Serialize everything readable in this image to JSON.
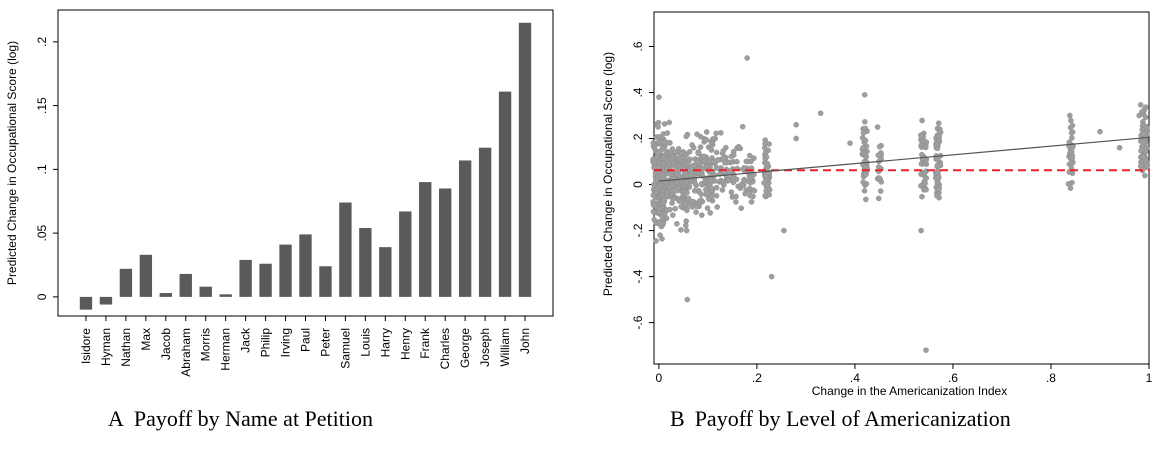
{
  "captions": {
    "a_letter": "A",
    "a_text": "Payoff by Name at Petition",
    "b_letter": "B",
    "b_text": "Payoff by Level of Americanization"
  },
  "chart_data": [
    {
      "type": "bar",
      "title": "",
      "xlabel": "",
      "ylabel": "Predicted Change in Occupational Score (log)",
      "ylim": [
        -0.015,
        0.225
      ],
      "yticks": [
        0,
        0.05,
        0.1,
        0.15,
        0.2
      ],
      "ytick_labels": [
        "0",
        ".05",
        ".1",
        ".15",
        ".2"
      ],
      "bar_color": "#5a5a5a",
      "grid": false,
      "categories": [
        "Isidore",
        "Hyman",
        "Nathan",
        "Max",
        "Jacob",
        "Abraham",
        "Morris",
        "Herman",
        "Jack",
        "Philip",
        "Irving",
        "Paul",
        "Peter",
        "Samuel",
        "Louis",
        "Harry",
        "Henry",
        "Frank",
        "Charles",
        "George",
        "Joseph",
        "William",
        "John"
      ],
      "values": [
        -0.01,
        -0.006,
        0.022,
        0.033,
        0.003,
        0.018,
        0.008,
        0.002,
        0.029,
        0.026,
        0.041,
        0.049,
        0.024,
        0.074,
        0.054,
        0.039,
        0.067,
        0.09,
        0.085,
        0.107,
        0.117,
        0.161,
        0.215
      ]
    },
    {
      "type": "scatter",
      "title": "",
      "xlabel": "Change in the Americanization Index",
      "ylabel": "Predicted Change in Occupational Score (log)",
      "xlim": [
        -0.01,
        1.0
      ],
      "ylim": [
        -0.78,
        0.75
      ],
      "xticks": [
        0,
        0.2,
        0.4,
        0.6,
        0.8,
        1
      ],
      "xtick_labels": [
        "0",
        ".2",
        ".4",
        ".6",
        ".8",
        "1"
      ],
      "yticks": [
        -0.6,
        -0.4,
        -0.2,
        0,
        0.2,
        0.4,
        0.6
      ],
      "ytick_labels": [
        "-.6",
        "-.4",
        "-.2",
        "0",
        ".2",
        ".4",
        ".6"
      ],
      "point_color": "#9e9e9e",
      "grid": false,
      "fit_line": {
        "x": [
          0,
          1
        ],
        "y": [
          0.015,
          0.205
        ],
        "color": "#555555"
      },
      "reference_line": {
        "y": 0.062,
        "color": "#e8222a",
        "style": "dashed"
      },
      "column_groups": [
        {
          "x": 0.0,
          "spread": 0.012,
          "n": 150,
          "mean": 0.01,
          "sd": 0.11,
          "min": -0.25,
          "max": 0.38
        },
        {
          "x": 0.03,
          "spread": 0.03,
          "n": 200,
          "mean": 0.03,
          "sd": 0.09,
          "min": -0.2,
          "max": 0.3
        },
        {
          "x": 0.08,
          "spread": 0.03,
          "n": 150,
          "mean": 0.04,
          "sd": 0.08,
          "min": -0.2,
          "max": 0.33
        },
        {
          "x": 0.13,
          "spread": 0.025,
          "n": 70,
          "mean": 0.05,
          "sd": 0.07,
          "min": -0.25,
          "max": 0.34
        },
        {
          "x": 0.175,
          "spread": 0.02,
          "n": 50,
          "mean": 0.05,
          "sd": 0.08,
          "min": -0.26,
          "max": 0.3
        },
        {
          "x": 0.22,
          "spread": 0.006,
          "n": 40,
          "mean": 0.06,
          "sd": 0.06,
          "min": -0.1,
          "max": 0.29
        },
        {
          "x": 0.42,
          "spread": 0.005,
          "n": 40,
          "mean": 0.1,
          "sd": 0.07,
          "min": -0.08,
          "max": 0.31
        },
        {
          "x": 0.45,
          "spread": 0.004,
          "n": 20,
          "mean": 0.08,
          "sd": 0.07,
          "min": -0.08,
          "max": 0.25
        },
        {
          "x": 0.54,
          "spread": 0.006,
          "n": 40,
          "mean": 0.1,
          "sd": 0.08,
          "min": -0.08,
          "max": 0.28
        },
        {
          "x": 0.57,
          "spread": 0.005,
          "n": 50,
          "mean": 0.1,
          "sd": 0.08,
          "min": -0.08,
          "max": 0.37
        },
        {
          "x": 0.84,
          "spread": 0.005,
          "n": 35,
          "mean": 0.15,
          "sd": 0.07,
          "min": -0.08,
          "max": 0.3
        },
        {
          "x": 0.99,
          "spread": 0.007,
          "n": 60,
          "mean": 0.2,
          "sd": 0.08,
          "min": -0.11,
          "max": 0.43
        }
      ],
      "points": [
        {
          "x": 0.0,
          "y": 0.38
        },
        {
          "x": 0.058,
          "y": -0.5
        },
        {
          "x": 0.18,
          "y": 0.55
        },
        {
          "x": 0.23,
          "y": -0.4
        },
        {
          "x": 0.255,
          "y": -0.2
        },
        {
          "x": 0.33,
          "y": 0.31
        },
        {
          "x": 0.39,
          "y": 0.18
        },
        {
          "x": 0.42,
          "y": 0.39
        },
        {
          "x": 0.535,
          "y": -0.2
        },
        {
          "x": 0.545,
          "y": -0.72
        },
        {
          "x": 0.9,
          "y": 0.23
        },
        {
          "x": 0.94,
          "y": 0.16
        },
        {
          "x": 0.98,
          "y": 0.3
        },
        {
          "x": 0.28,
          "y": 0.26
        },
        {
          "x": 0.28,
          "y": 0.2
        }
      ]
    }
  ]
}
